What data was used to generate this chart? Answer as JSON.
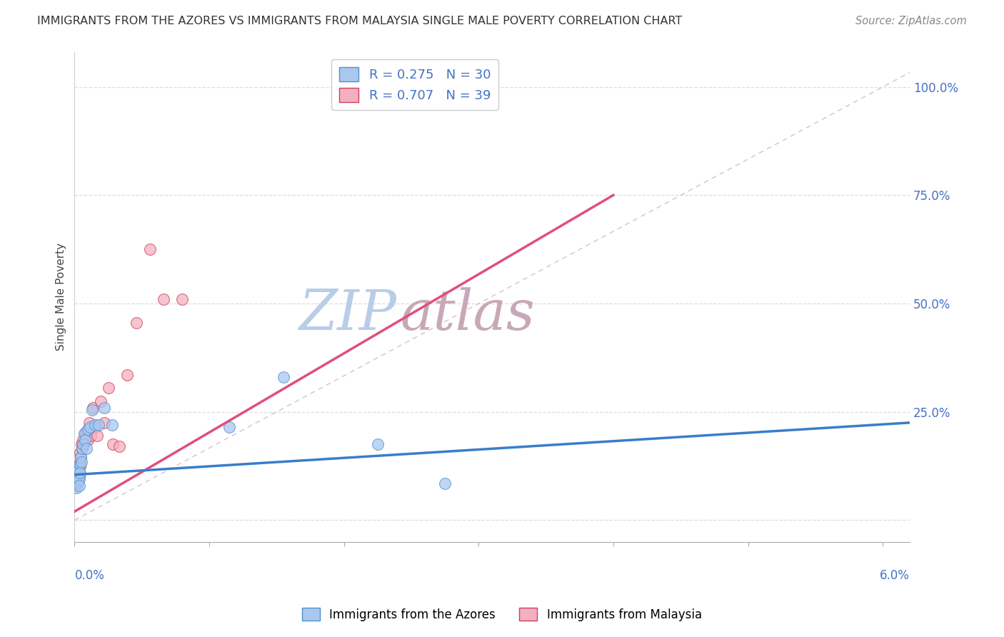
{
  "title": "IMMIGRANTS FROM THE AZORES VS IMMIGRANTS FROM MALAYSIA SINGLE MALE POVERTY CORRELATION CHART",
  "source": "Source: ZipAtlas.com",
  "legend_azores": "Immigrants from the Azores",
  "legend_malaysia": "Immigrants from Malaysia",
  "ylabel": "Single Male Poverty",
  "R_azores": "0.275",
  "N_azores": "30",
  "R_malaysia": "0.707",
  "N_malaysia": "39",
  "color_azores_fill": "#A8C8F0",
  "color_azores_edge": "#5090D0",
  "color_malaysia_fill": "#F4B0C0",
  "color_malaysia_edge": "#D04060",
  "color_trend_azores": "#3A7DC9",
  "color_trend_malaysia": "#E0507A",
  "color_ref_line": "#D8C0C8",
  "watermark_zip": "#B8CDE8",
  "watermark_atlas": "#C8A8B8",
  "background": "#FFFFFF",
  "xlim": [
    0.0,
    0.062
  ],
  "ylim": [
    -0.05,
    1.08
  ],
  "yticks": [
    0.0,
    0.25,
    0.5,
    0.75,
    1.0
  ],
  "ytick_labels": [
    "",
    "25.0%",
    "50.0%",
    "75.0%",
    "100.0%"
  ],
  "azores_x": [
    8e-05,
    0.00012,
    0.00016,
    0.0002,
    0.00022,
    0.00025,
    0.00028,
    0.0003,
    0.00033,
    0.00036,
    0.0004,
    0.00043,
    0.00047,
    0.00052,
    0.00057,
    0.00062,
    0.0007,
    0.0008,
    0.0009,
    0.001,
    0.00115,
    0.0013,
    0.0015,
    0.0018,
    0.0022,
    0.0028,
    0.0115,
    0.0155,
    0.0225,
    0.0275
  ],
  "azores_y": [
    0.105,
    0.075,
    0.11,
    0.095,
    0.12,
    0.088,
    0.1,
    0.115,
    0.095,
    0.08,
    0.13,
    0.11,
    0.145,
    0.135,
    0.165,
    0.175,
    0.2,
    0.185,
    0.165,
    0.21,
    0.215,
    0.255,
    0.22,
    0.22,
    0.26,
    0.22,
    0.215,
    0.33,
    0.175,
    0.085
  ],
  "malaysia_x": [
    5e-05,
    8e-05,
    0.0001,
    0.00013,
    0.00015,
    0.00018,
    0.0002,
    0.00022,
    0.00025,
    0.00027,
    0.0003,
    0.00033,
    0.00036,
    0.0004,
    0.00043,
    0.00047,
    0.00052,
    0.00057,
    0.00062,
    0.00068,
    0.00075,
    0.00082,
    0.0009,
    0.001,
    0.0011,
    0.0012,
    0.00135,
    0.0015,
    0.0017,
    0.00195,
    0.0022,
    0.0025,
    0.00285,
    0.0033,
    0.0039,
    0.0046,
    0.0056,
    0.0066,
    0.008
  ],
  "malaysia_y": [
    0.085,
    0.08,
    0.095,
    0.09,
    0.105,
    0.088,
    0.12,
    0.095,
    0.11,
    0.088,
    0.115,
    0.1,
    0.13,
    0.125,
    0.155,
    0.145,
    0.175,
    0.165,
    0.185,
    0.175,
    0.2,
    0.19,
    0.205,
    0.185,
    0.225,
    0.195,
    0.26,
    0.215,
    0.195,
    0.275,
    0.225,
    0.305,
    0.175,
    0.17,
    0.335,
    0.455,
    0.625,
    0.51,
    0.51
  ],
  "pink_trend_x0": 0.0,
  "pink_trend_y0": 0.02,
  "pink_trend_x1": 0.04,
  "pink_trend_y1": 0.75,
  "blue_trend_x0": 0.0,
  "blue_trend_y0": 0.105,
  "blue_trend_x1": 0.062,
  "blue_trend_y1": 0.225
}
